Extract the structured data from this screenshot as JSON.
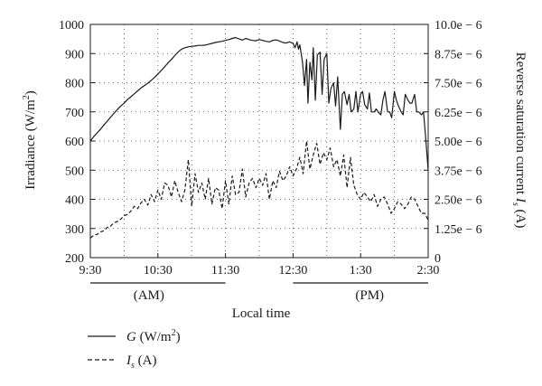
{
  "chart_data": {
    "type": "line",
    "xlabel": "Local time",
    "ylabel_left": "Irradiance (W/m²)",
    "ylabel_right": "Reverse saturation current I_s (A)",
    "x_ticks": [
      "9:30",
      "10:30",
      "11:30",
      "12:30",
      "1:30",
      "2:30"
    ],
    "x_period_labels": [
      "(AM)",
      "(PM)"
    ],
    "ylim_left": [
      200,
      1000
    ],
    "y_ticks_left": [
      "200",
      "300",
      "400",
      "500",
      "600",
      "700",
      "800",
      "900",
      "1000"
    ],
    "ylim_right": [
      0,
      1e-05
    ],
    "y_ticks_right": [
      "0",
      "1.25e − 6",
      "2.50e − 6",
      "3.75e − 6",
      "5.00e − 6",
      "6.25e − 6",
      "7.50e − 6",
      "8.75e − 6",
      "10.0e − 6"
    ],
    "grid": true,
    "legend_placement": "bottom-left",
    "series": [
      {
        "name": "G (W/m²)",
        "style": "solid",
        "axis": "left",
        "x_hours": [
          0,
          0.05,
          0.1,
          0.15,
          0.2,
          0.25,
          0.3,
          0.35,
          0.4,
          0.45,
          0.5,
          0.55,
          0.6,
          0.65,
          0.7,
          0.75,
          0.8,
          0.85,
          0.9,
          0.95,
          1.0,
          1.05,
          1.1,
          1.15,
          1.2,
          1.25,
          1.3,
          1.35,
          1.4,
          1.45,
          1.5,
          1.55,
          1.6,
          1.65,
          1.7,
          1.75,
          1.8,
          1.85,
          1.9,
          1.95,
          2.0,
          2.05,
          2.1,
          2.15,
          2.2,
          2.25,
          2.3,
          2.35,
          2.4,
          2.45,
          2.5,
          2.55,
          2.6,
          2.65,
          2.7,
          2.75,
          2.8,
          2.85,
          2.9,
          2.95,
          3.0,
          3.03,
          3.06,
          3.08,
          3.1,
          3.12,
          3.14,
          3.17,
          3.2,
          3.22,
          3.25,
          3.28,
          3.3,
          3.33,
          3.36,
          3.4,
          3.43,
          3.46,
          3.5,
          3.53,
          3.56,
          3.6,
          3.63,
          3.66,
          3.7,
          3.73,
          3.76,
          3.8,
          3.83,
          3.86,
          3.9,
          3.93,
          3.96,
          4.0,
          4.03,
          4.06,
          4.1,
          4.13,
          4.16,
          4.2,
          4.23,
          4.26,
          4.3,
          4.33,
          4.36,
          4.4,
          4.43,
          4.46,
          4.5,
          4.53,
          4.56,
          4.6,
          4.63,
          4.66,
          4.7,
          4.73,
          4.76,
          4.8,
          4.83,
          4.86,
          4.9,
          4.93,
          4.96,
          5.0
        ],
        "y": [
          600,
          615,
          628,
          640,
          655,
          668,
          682,
          695,
          708,
          720,
          730,
          742,
          752,
          762,
          772,
          782,
          790,
          798,
          808,
          818,
          830,
          842,
          855,
          868,
          880,
          893,
          905,
          915,
          920,
          923,
          925,
          926,
          928,
          928,
          929,
          932,
          935,
          938,
          940,
          942,
          945,
          948,
          952,
          955,
          950,
          946,
          952,
          948,
          945,
          944,
          948,
          945,
          942,
          940,
          945,
          947,
          943,
          938,
          936,
          940,
          935,
          920,
          940,
          915,
          930,
          900,
          870,
          790,
          880,
          730,
          870,
          810,
          920,
          740,
          895,
          905,
          760,
          880,
          900,
          730,
          780,
          800,
          720,
          820,
          640,
          760,
          770,
          725,
          760,
          700,
          710,
          770,
          700,
          760,
          770,
          725,
          710,
          765,
          700,
          700,
          710,
          700,
          690,
          740,
          770,
          700,
          700,
          680,
          770,
          740,
          720,
          700,
          690,
          760,
          740,
          730,
          730,
          760,
          700,
          700,
          690,
          700,
          620,
          500
        ]
      },
      {
        "name": "I_s (A)",
        "style": "dashed",
        "axis": "right",
        "x_hours": [
          0,
          0.05,
          0.1,
          0.15,
          0.2,
          0.25,
          0.3,
          0.35,
          0.4,
          0.45,
          0.5,
          0.55,
          0.6,
          0.65,
          0.7,
          0.75,
          0.8,
          0.85,
          0.9,
          0.95,
          1.0,
          1.05,
          1.1,
          1.15,
          1.2,
          1.25,
          1.3,
          1.35,
          1.4,
          1.45,
          1.5,
          1.55,
          1.6,
          1.65,
          1.7,
          1.75,
          1.8,
          1.85,
          1.9,
          1.95,
          2.0,
          2.05,
          2.1,
          2.15,
          2.2,
          2.25,
          2.3,
          2.35,
          2.4,
          2.45,
          2.5,
          2.55,
          2.6,
          2.65,
          2.7,
          2.75,
          2.8,
          2.85,
          2.9,
          2.95,
          3.0,
          3.05,
          3.1,
          3.15,
          3.2,
          3.25,
          3.3,
          3.35,
          3.4,
          3.45,
          3.5,
          3.55,
          3.6,
          3.65,
          3.7,
          3.75,
          3.8,
          3.85,
          3.9,
          3.95,
          4.0,
          4.05,
          4.1,
          4.15,
          4.2,
          4.25,
          4.3,
          4.35,
          4.4,
          4.45,
          4.5,
          4.55,
          4.6,
          4.65,
          4.7,
          4.75,
          4.8,
          4.85,
          4.9,
          4.95,
          5.0
        ],
        "y": [
          8.5e-07,
          9.5e-07,
          1e-06,
          1.1e-06,
          1.15e-06,
          1.3e-06,
          1.35e-06,
          1.5e-06,
          1.55e-06,
          1.65e-06,
          1.8e-06,
          1.85e-06,
          2e-06,
          2.2e-06,
          2.1e-06,
          2.35e-06,
          2.5e-06,
          2.25e-06,
          2.7e-06,
          2.4e-06,
          2.9e-06,
          2.5e-06,
          3.2e-06,
          3.1e-06,
          2.6e-06,
          3.3e-06,
          2.8e-06,
          2.4e-06,
          2.9e-06,
          4.2e-06,
          2.2e-06,
          3.6e-06,
          2.8e-06,
          3.2e-06,
          2.5e-06,
          3.4e-06,
          2.3e-06,
          3e-06,
          2.9e-06,
          2.1e-06,
          3.3e-06,
          2.3e-06,
          3.5e-06,
          2.7e-06,
          2.8e-06,
          3.8e-06,
          2.6e-06,
          3.2e-06,
          3.4e-06,
          3e-06,
          3.4e-06,
          3.1e-06,
          3.6e-06,
          2.5e-06,
          3.3e-06,
          3e-06,
          3.7e-06,
          3.3e-06,
          3.5e-06,
          3.9e-06,
          3.5e-06,
          3.8e-06,
          4.3e-06,
          3.6e-06,
          5e-06,
          3.8e-06,
          4.4e-06,
          4.9e-06,
          4e-06,
          4.5e-06,
          4.2e-06,
          4.7e-06,
          3.9e-06,
          4.2e-06,
          3.5e-06,
          4.4e-06,
          3e-06,
          4.3e-06,
          3.1e-06,
          2.7e-06,
          2.5e-06,
          2.8e-06,
          2.6e-06,
          2.4e-06,
          2.7e-06,
          2.2e-06,
          2.5e-06,
          2.6e-06,
          2.3e-06,
          1.9e-06,
          2.1e-06,
          2.4e-06,
          2.3e-06,
          2.1e-06,
          2.3e-06,
          2.6e-06,
          2.5e-06,
          2.2e-06,
          1.9e-06,
          1.9e-06,
          1.6e-06
        ]
      }
    ]
  }
}
